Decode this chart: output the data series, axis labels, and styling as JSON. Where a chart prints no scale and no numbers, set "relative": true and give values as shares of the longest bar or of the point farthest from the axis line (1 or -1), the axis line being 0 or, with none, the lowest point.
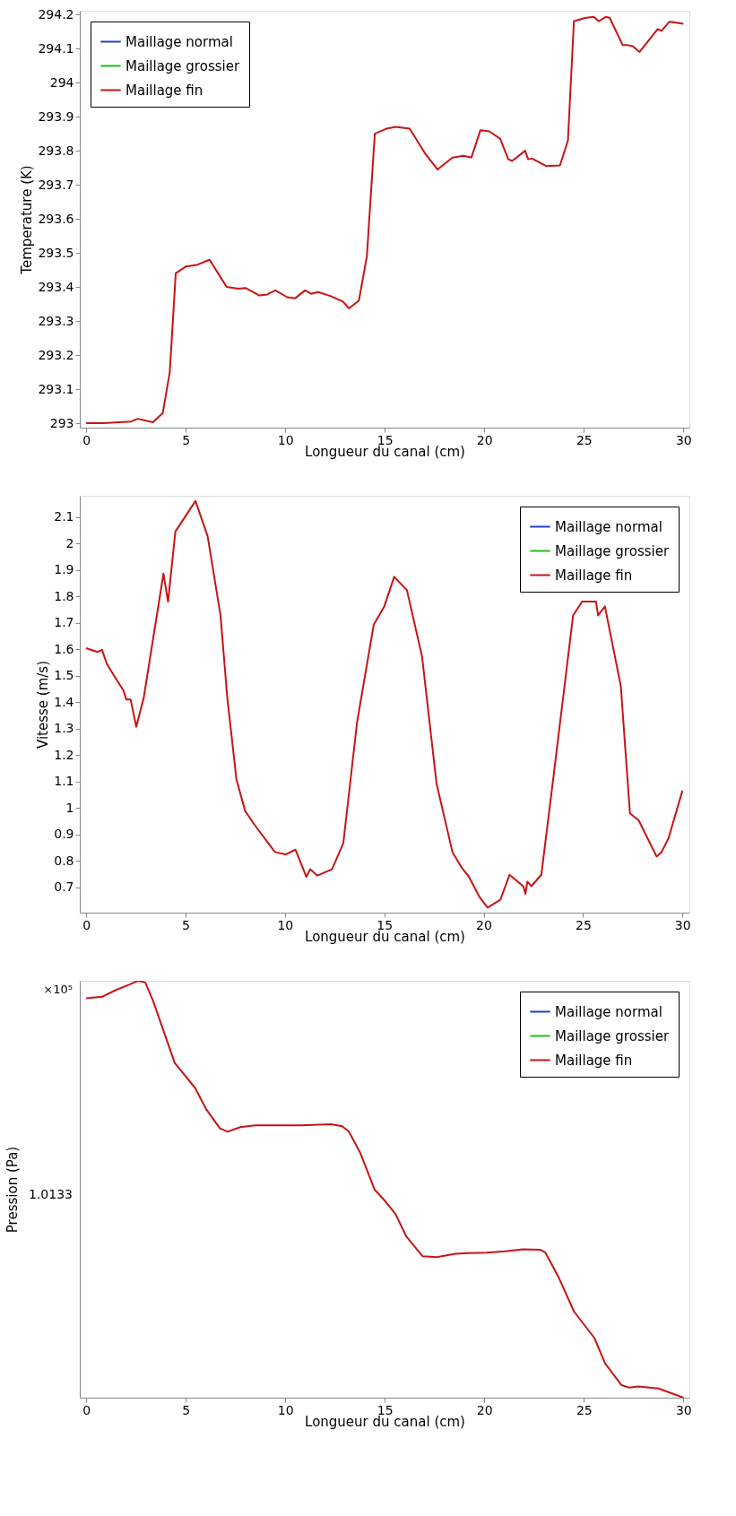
{
  "chart_data": [
    {
      "type": "line",
      "xlabel": "Longueur du canal (cm)",
      "ylabel": "Temperature (K)",
      "xlim": [
        -0.32,
        30.3
      ],
      "ylim": [
        292.987,
        294.211
      ],
      "xticks": [
        0,
        5,
        10,
        15,
        20,
        25,
        30
      ],
      "yticks": [
        293,
        293.1,
        293.2,
        293.3,
        293.4,
        293.5,
        293.6,
        293.7,
        293.8,
        293.9,
        294,
        294.1,
        294.2
      ],
      "grid": false,
      "legend": "top left",
      "line_style": "solid",
      "marker": "none",
      "x": [
        0,
        0.87,
        2.25,
        2.6,
        3.35,
        3.85,
        4.2,
        4.5,
        5.0,
        5.57,
        6.2,
        7.06,
        7.64,
        8.0,
        8.7,
        9.1,
        9.5,
        10.1,
        10.5,
        11.0,
        11.3,
        11.65,
        12.3,
        12.9,
        13.2,
        13.7,
        14.1,
        14.5,
        15.1,
        15.55,
        16.25,
        17.05,
        17.65,
        18.4,
        18.95,
        19.35,
        19.8,
        20.25,
        20.8,
        21.2,
        21.4,
        22.05,
        22.2,
        22.4,
        23.1,
        23.8,
        24.2,
        24.5,
        25.05,
        25.5,
        25.75,
        26.1,
        26.3,
        26.95,
        27.2,
        27.45,
        27.8,
        28.7,
        28.9,
        29.3,
        30
      ],
      "series": [
        {
          "name": "Maillage normal",
          "color": "#1f3fd0",
          "values": [
            null,
            null,
            null,
            null,
            null,
            null,
            null,
            null,
            null,
            null,
            null,
            null,
            null,
            null,
            null,
            null,
            null,
            null,
            null,
            null,
            null,
            null,
            null,
            null,
            null,
            null,
            null,
            null,
            null,
            null,
            null,
            null,
            null,
            null,
            null,
            null,
            null,
            null,
            null,
            null,
            null,
            null,
            null,
            null,
            null,
            null,
            null,
            null,
            null,
            null,
            null,
            null,
            null,
            null,
            null,
            null,
            null,
            null,
            null,
            null,
            null
          ]
        },
        {
          "name": "Maillage grossier",
          "color": "#1fbf1f",
          "values": [
            null,
            null,
            null,
            null,
            null,
            null,
            null,
            null,
            null,
            null,
            null,
            null,
            null,
            null,
            null,
            null,
            null,
            null,
            null,
            null,
            null,
            null,
            null,
            null,
            null,
            null,
            null,
            null,
            null,
            null,
            null,
            null,
            null,
            null,
            null,
            null,
            null,
            null,
            null,
            null,
            null,
            null,
            null,
            null,
            null,
            null,
            null,
            null,
            null,
            null,
            null,
            null,
            null,
            null,
            null,
            null,
            null,
            null,
            null,
            null,
            null
          ]
        },
        {
          "name": "Maillage fin",
          "color": "#c81414",
          "values": [
            293.0,
            293.0,
            293.005,
            293.013,
            293.003,
            293.03,
            293.15,
            293.44,
            293.46,
            293.465,
            293.48,
            293.4,
            293.395,
            293.397,
            293.375,
            293.378,
            293.39,
            293.37,
            293.367,
            293.39,
            293.38,
            293.385,
            293.373,
            293.357,
            293.337,
            293.36,
            293.49,
            293.85,
            293.865,
            293.87,
            293.865,
            293.79,
            293.745,
            293.78,
            293.785,
            293.78,
            293.86,
            293.857,
            293.835,
            293.775,
            293.77,
            293.8,
            293.775,
            293.777,
            293.755,
            293.757,
            293.83,
            294.18,
            294.19,
            294.193,
            294.18,
            294.193,
            294.19,
            294.11,
            294.11,
            294.107,
            294.09,
            294.157,
            294.152,
            294.179,
            294.173
          ]
        }
      ]
    },
    {
      "type": "line",
      "xlabel": "Longueur du canal (cm)",
      "ylabel": "Vitesse (m/s)",
      "xlim": [
        -0.32,
        30.35
      ],
      "ylim": [
        0.605,
        2.18
      ],
      "xticks": [
        0,
        5,
        10,
        15,
        20,
        25,
        30
      ],
      "yticks": [
        0.7,
        0.8,
        0.9,
        1,
        1.1,
        1.2,
        1.3,
        1.4,
        1.5,
        1.6,
        1.7,
        1.8,
        1.9,
        2,
        2.1
      ],
      "grid": false,
      "legend": "top right",
      "line_style": "solid",
      "marker": "none",
      "x": [
        0,
        0.57,
        0.8,
        1.03,
        1.37,
        1.88,
        2.02,
        2.24,
        2.52,
        2.9,
        3.39,
        3.89,
        4.12,
        4.49,
        5.5,
        6.11,
        6.76,
        7.1,
        7.56,
        8.0,
        8.47,
        9.5,
        10.03,
        10.53,
        11.08,
        11.27,
        11.63,
        12.37,
        12.94,
        13.63,
        14.47,
        15.0,
        15.5,
        16.14,
        16.9,
        17.63,
        18.43,
        18.9,
        19.24,
        19.81,
        20.2,
        20.84,
        21.3,
        21.99,
        22.1,
        22.2,
        22.4,
        22.9,
        23.47,
        24.5,
        24.95,
        25.5,
        25.65,
        25.76,
        26.1,
        26.9,
        27.36,
        27.8,
        28.7,
        28.95,
        29.3,
        30
      ],
      "series": [
        {
          "name": "Maillage normal",
          "color": "#1f3fd0",
          "values": [
            null,
            null,
            null,
            null,
            null,
            null,
            null,
            null,
            null,
            null,
            null,
            null,
            null,
            null,
            null,
            null,
            null,
            null,
            null,
            null,
            null,
            null,
            null,
            null,
            null,
            null,
            null,
            null,
            null,
            null,
            null,
            null,
            null,
            null,
            null,
            null,
            null,
            null,
            null,
            null,
            null,
            null,
            null,
            null,
            null,
            null,
            null,
            null,
            null,
            null,
            null,
            null,
            null,
            null,
            null,
            null,
            null,
            null,
            null,
            null,
            null,
            null
          ]
        },
        {
          "name": "Maillage grossier",
          "color": "#1fbf1f",
          "values": [
            null,
            null,
            null,
            null,
            null,
            null,
            null,
            null,
            null,
            null,
            null,
            null,
            null,
            null,
            null,
            null,
            null,
            null,
            null,
            null,
            null,
            null,
            null,
            null,
            null,
            null,
            null,
            null,
            null,
            null,
            null,
            null,
            null,
            null,
            null,
            null,
            null,
            null,
            null,
            null,
            null,
            null,
            null,
            null,
            null,
            null,
            null,
            null,
            null,
            null,
            null,
            null,
            null,
            null,
            null,
            null,
            null,
            null,
            null,
            null,
            null,
            null
          ]
        },
        {
          "name": "Maillage fin",
          "color": "#c81414",
          "values": [
            1.604,
            1.59,
            1.598,
            1.547,
            1.504,
            1.444,
            1.41,
            1.41,
            1.307,
            1.418,
            1.65,
            1.886,
            1.78,
            2.045,
            2.16,
            2.028,
            1.728,
            1.418,
            1.109,
            0.989,
            0.937,
            0.834,
            0.825,
            0.843,
            0.74,
            0.769,
            0.745,
            0.769,
            0.868,
            1.324,
            1.693,
            1.762,
            1.874,
            1.823,
            1.573,
            1.092,
            0.834,
            0.774,
            0.743,
            0.662,
            0.624,
            0.654,
            0.748,
            0.705,
            0.676,
            0.722,
            0.705,
            0.748,
            1.092,
            1.728,
            1.78,
            null,
            1.78,
            1.728,
            1.762,
            1.461,
            0.98,
            0.954,
            0.817,
            0.834,
            0.886,
            1.066
          ]
        }
      ]
    },
    {
      "type": "line",
      "relative": true,
      "xlabel": "Longueur du canal (cm)",
      "ylabel": "Pression (Pa)",
      "xlim": [
        -0.32,
        30.3
      ],
      "xticks": [
        0,
        5,
        10,
        15,
        20,
        25,
        30
      ],
      "grid": false,
      "legend": "top right",
      "line_style": "solid",
      "marker": "none",
      "annotations": [
        "×10⁵",
        "1.0133"
      ],
      "x": [
        0,
        0.82,
        1.5,
        2.18,
        2.59,
        2.97,
        3.36,
        4.45,
        5.47,
        6.04,
        6.72,
        7.11,
        7.74,
        8.49,
        10.8,
        12.29,
        12.86,
        13.2,
        13.76,
        14.49,
        15.01,
        15.53,
        16.08,
        16.9,
        17.62,
        18.53,
        19.21,
        20.12,
        21.03,
        21.94,
        22.8,
        23.07,
        23.75,
        24.5,
        25.53,
        26.07,
        26.89,
        27.28,
        27.73,
        28.75,
        30
      ],
      "series": [
        {
          "name": "Maillage normal",
          "color": "#1f3fd0",
          "values": [
            null,
            null,
            null,
            null,
            null,
            null,
            null,
            null,
            null,
            null,
            null,
            null,
            null,
            null,
            null,
            null,
            null,
            null,
            null,
            null,
            null,
            null,
            null,
            null,
            null,
            null,
            null,
            null,
            null,
            null,
            null,
            null,
            null,
            null,
            null,
            null,
            null,
            null,
            null,
            null,
            null
          ]
        },
        {
          "name": "Maillage grossier",
          "color": "#1fbf1f",
          "values": [
            null,
            null,
            null,
            null,
            null,
            null,
            null,
            null,
            null,
            null,
            null,
            null,
            null,
            null,
            null,
            null,
            null,
            null,
            null,
            null,
            null,
            null,
            null,
            null,
            null,
            null,
            null,
            null,
            null,
            null,
            null,
            null,
            null,
            null,
            null,
            null,
            null,
            null,
            null,
            null,
            null
          ]
        },
        {
          "name": "Maillage fin",
          "color": "#c81414",
          "values": [
            0.958,
            0.962,
            0.978,
            0.991,
            1.0,
            0.996,
            0.952,
            0.803,
            0.743,
            0.691,
            0.646,
            0.638,
            0.649,
            0.653,
            0.653,
            0.656,
            0.651,
            0.638,
            0.588,
            0.499,
            0.472,
            0.441,
            0.387,
            0.339,
            0.337,
            0.345,
            0.347,
            0.348,
            0.351,
            0.356,
            0.355,
            0.348,
            0.287,
            0.207,
            0.143,
            0.082,
            0.03,
            0.024,
            0.027,
            0.022,
            0.0
          ]
        }
      ]
    }
  ]
}
